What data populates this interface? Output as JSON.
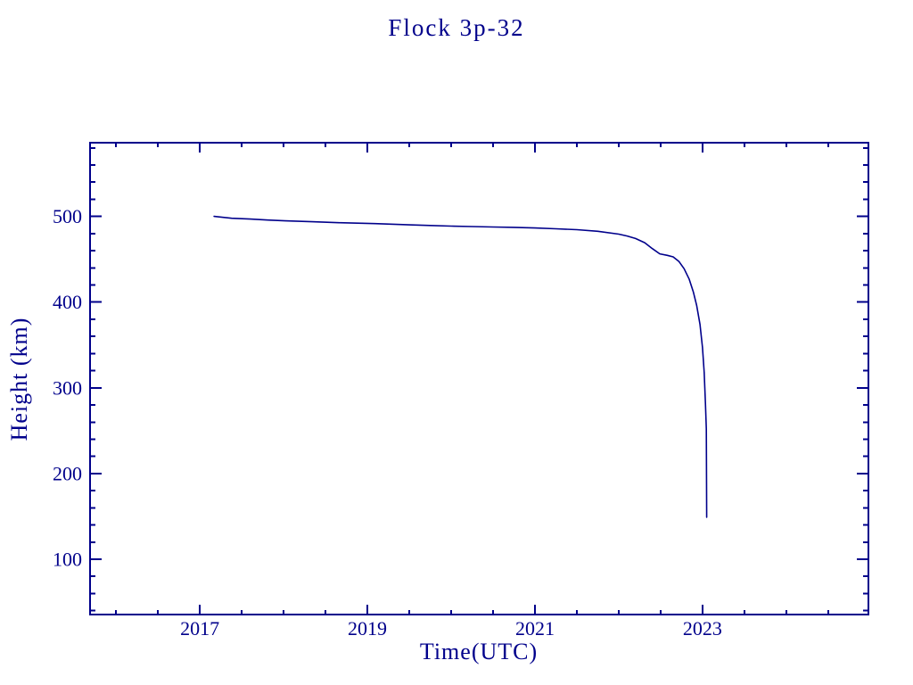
{
  "page": {
    "background": "#ffffff",
    "ink_color": "#00008b"
  },
  "chart_data": {
    "type": "line",
    "title": "Flock 3p-32",
    "xlabel": "Time(UTC)",
    "ylabel": "Height (km)",
    "xlim": [
      2015.69,
      2024.98
    ],
    "ylim": [
      35.5,
      586.0
    ],
    "x_major_ticks": [
      2017,
      2019,
      2021,
      2023
    ],
    "x_major_tick_labels": [
      "2017",
      "2019",
      "2021",
      "2023"
    ],
    "x_minor_tick_start": 2016.0,
    "x_minor_tick_step": 0.5,
    "y_major_ticks": [
      100,
      200,
      300,
      400,
      500
    ],
    "y_major_tick_labels": [
      "100",
      "200",
      "300",
      "400",
      "500"
    ],
    "y_minor_tick_start": 40,
    "y_minor_tick_step": 20,
    "grid": false,
    "legend": "none",
    "line_color": "#00008b",
    "frame_color": "#00008b",
    "series": [
      {
        "name": "Flock 3p-32 height",
        "points": [
          [
            2017.17,
            500.0
          ],
          [
            2017.38,
            497.9
          ],
          [
            2017.6,
            496.9
          ],
          [
            2017.81,
            495.8
          ],
          [
            2018.02,
            494.8
          ],
          [
            2018.34,
            493.8
          ],
          [
            2018.66,
            492.7
          ],
          [
            2019.09,
            491.6
          ],
          [
            2019.5,
            490.2
          ],
          [
            2019.75,
            489.4
          ],
          [
            2020.0,
            488.7
          ],
          [
            2020.25,
            488.2
          ],
          [
            2020.5,
            487.7
          ],
          [
            2020.75,
            487.2
          ],
          [
            2021.0,
            486.5
          ],
          [
            2021.25,
            485.6
          ],
          [
            2021.5,
            484.5
          ],
          [
            2021.75,
            482.7
          ],
          [
            2022.0,
            479.3
          ],
          [
            2022.1,
            477.2
          ],
          [
            2022.2,
            474.2
          ],
          [
            2022.31,
            469.3
          ],
          [
            2022.4,
            462.5
          ],
          [
            2022.49,
            456.3
          ],
          [
            2022.58,
            454.6
          ],
          [
            2022.65,
            452.8
          ],
          [
            2022.72,
            447.3
          ],
          [
            2022.78,
            439.0
          ],
          [
            2022.84,
            427.0
          ],
          [
            2022.89,
            412.0
          ],
          [
            2022.93,
            396.0
          ],
          [
            2022.97,
            374.0
          ],
          [
            2023.0,
            347.0
          ],
          [
            2023.02,
            318.0
          ],
          [
            2023.035,
            282.0
          ],
          [
            2023.045,
            252.0
          ],
          [
            2023.05,
            149.0
          ]
        ]
      }
    ]
  }
}
